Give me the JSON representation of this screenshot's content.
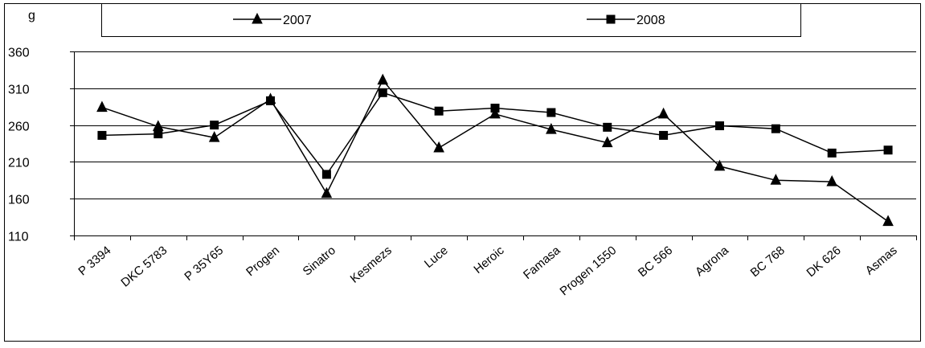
{
  "chart_data": {
    "type": "line",
    "ylabel": "g",
    "ylim": [
      110,
      360
    ],
    "yticks": [
      110,
      160,
      210,
      260,
      310,
      360
    ],
    "grid": true,
    "legend_position": "top",
    "categories": [
      "P 3394",
      "DKC 5783",
      "P 35Y65",
      "Progen",
      "Sinatro",
      "Kesmezs",
      "Luce",
      "Heroic",
      "Famasa",
      "Progen 1550",
      "BC 566",
      "Agrona",
      "BC 768",
      "DK 626",
      "Asmas"
    ],
    "series": [
      {
        "name": "2007",
        "marker": "triangle",
        "values": [
          284,
          258,
          243,
          295,
          167,
          321,
          229,
          275,
          254,
          236,
          275,
          204,
          185,
          183,
          129
        ]
      },
      {
        "name": "2008",
        "marker": "square",
        "values": [
          246,
          248,
          260,
          293,
          193,
          304,
          279,
          283,
          277,
          257,
          246,
          259,
          255,
          222,
          226
        ]
      }
    ],
    "colors": {
      "line": "#000000",
      "grid": "#000000",
      "background": "#ffffff"
    }
  }
}
